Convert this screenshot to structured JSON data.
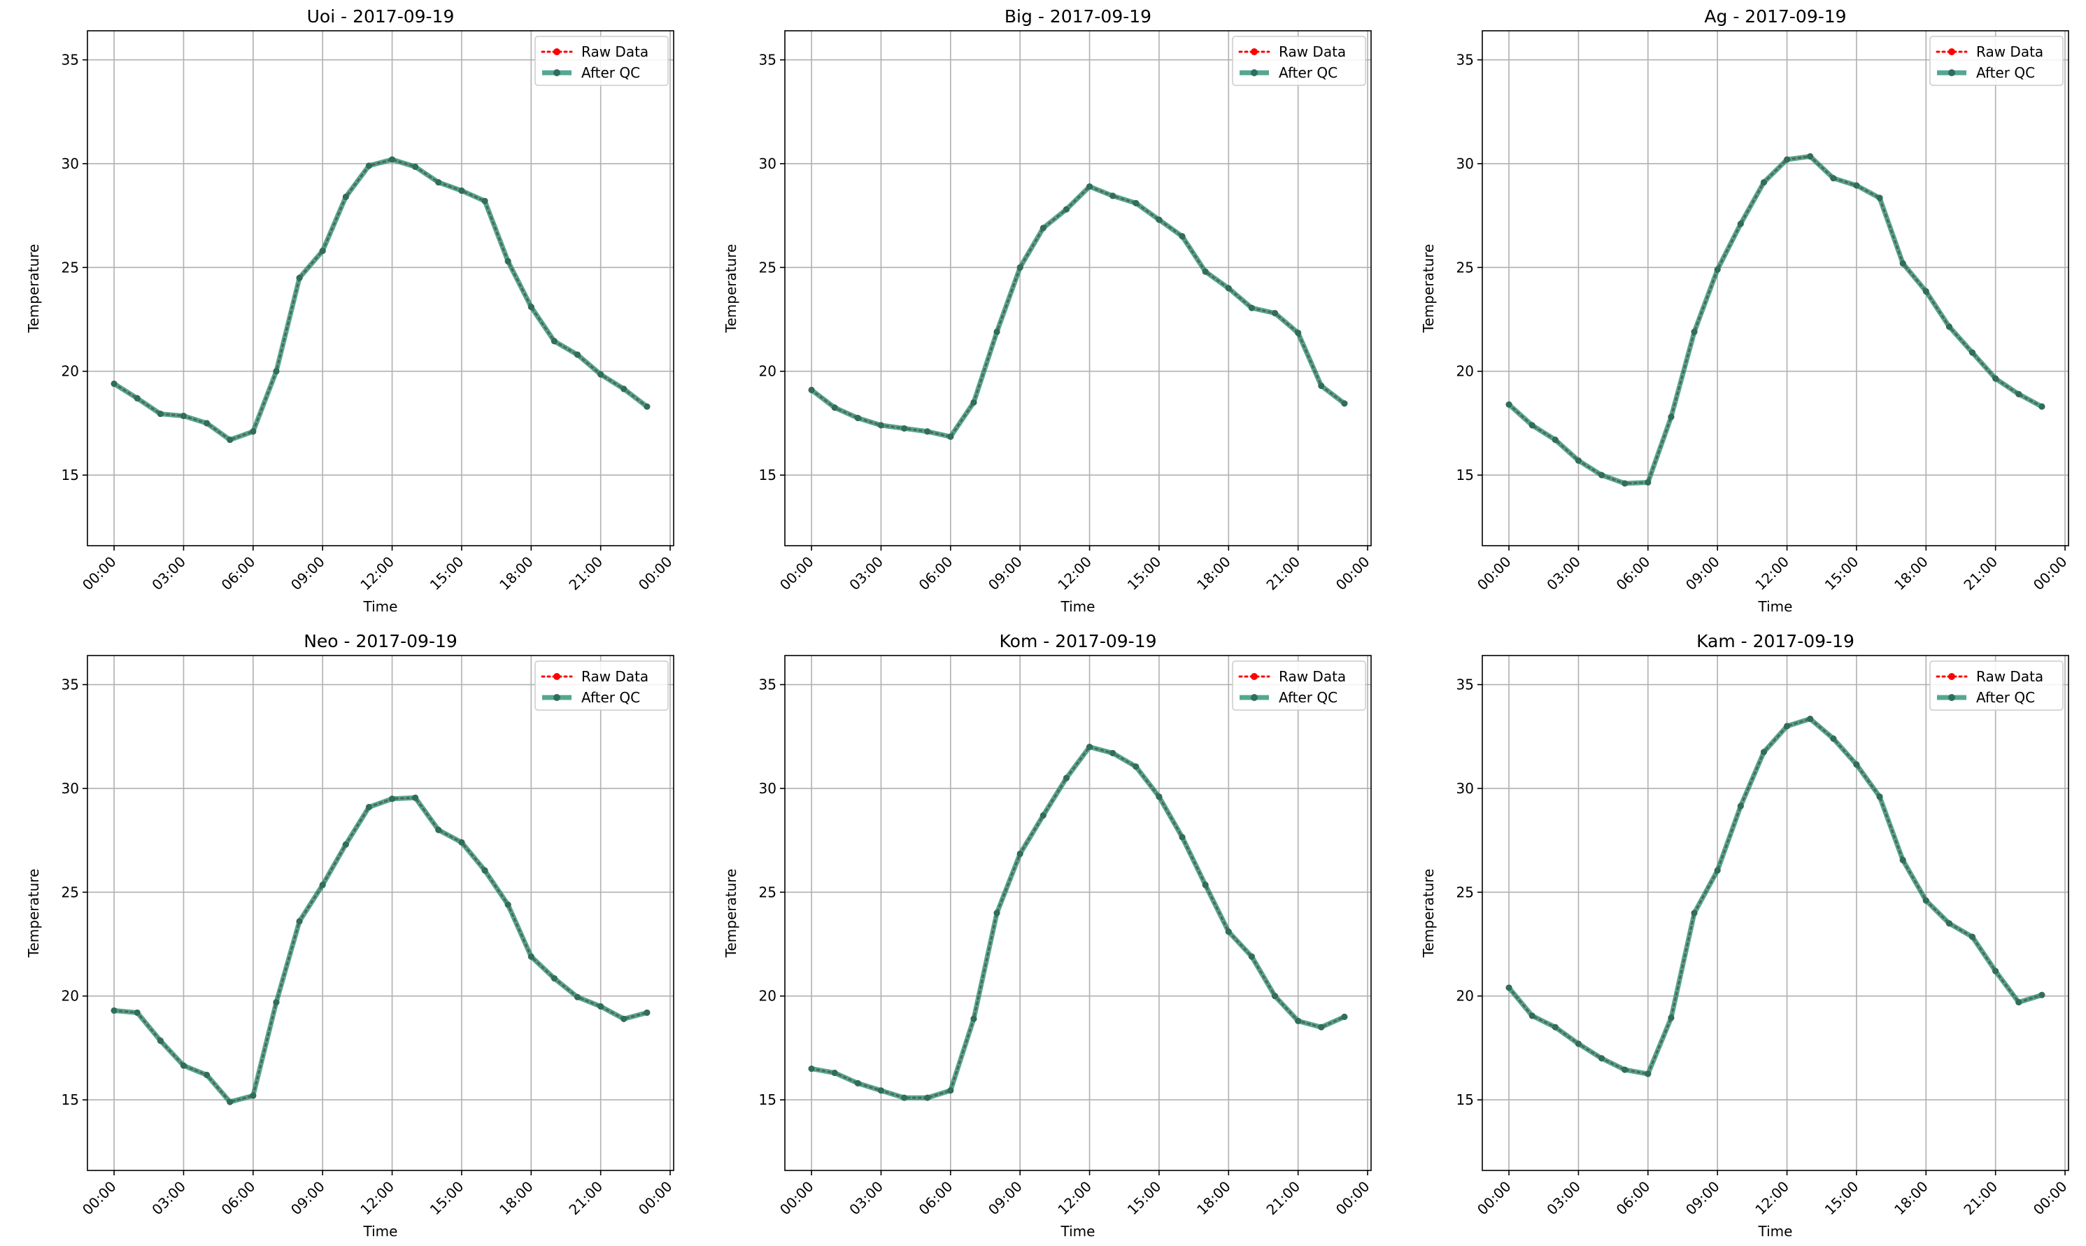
{
  "chart_data": [
    {
      "type": "line",
      "title": "Uoi - 2017-09-19",
      "xlabel": "Time",
      "ylabel": "Temperature",
      "xlim_hours": [
        -1.15,
        24.15
      ],
      "ylim": [
        11.6,
        36.4
      ],
      "xtick_labels": [
        "00:00",
        "03:00",
        "06:00",
        "09:00",
        "12:00",
        "15:00",
        "18:00",
        "21:00",
        "00:00"
      ],
      "ytick_labels": [
        "15",
        "20",
        "25",
        "30",
        "35"
      ],
      "grid": true,
      "legend_position": "top-right",
      "series": [
        {
          "name": "Raw Data",
          "color": "#ff0000",
          "style": "dotted",
          "values": [
            19.4,
            18.7,
            17.95,
            17.85,
            17.5,
            16.7,
            17.1,
            20.0,
            24.5,
            25.8,
            28.4,
            29.9,
            30.2,
            29.85,
            29.1,
            28.7,
            28.2,
            25.3,
            23.1,
            21.45,
            20.8,
            19.85,
            19.15,
            18.3
          ]
        },
        {
          "name": "After QC",
          "color": "#1b8a6b",
          "style": "solid",
          "values": [
            19.4,
            18.7,
            17.95,
            17.85,
            17.5,
            16.7,
            17.1,
            20.0,
            24.5,
            25.8,
            28.4,
            29.9,
            30.2,
            29.85,
            29.1,
            28.7,
            28.2,
            25.3,
            23.1,
            21.45,
            20.8,
            19.85,
            19.15,
            18.3
          ]
        }
      ]
    },
    {
      "type": "line",
      "title": "Big - 2017-09-19",
      "xlabel": "Time",
      "ylabel": "Temperature",
      "xlim_hours": [
        -1.15,
        24.15
      ],
      "ylim": [
        11.6,
        36.4
      ],
      "xtick_labels": [
        "00:00",
        "03:00",
        "06:00",
        "09:00",
        "12:00",
        "15:00",
        "18:00",
        "21:00",
        "00:00"
      ],
      "ytick_labels": [
        "15",
        "20",
        "25",
        "30",
        "35"
      ],
      "grid": true,
      "legend_position": "top-right",
      "series": [
        {
          "name": "Raw Data",
          "color": "#ff0000",
          "style": "dotted",
          "values": [
            19.1,
            18.25,
            17.75,
            17.4,
            17.25,
            17.1,
            16.85,
            18.5,
            21.9,
            25.0,
            26.9,
            27.8,
            28.9,
            28.45,
            28.1,
            27.3,
            26.5,
            24.8,
            24.0,
            23.05,
            22.8,
            21.85,
            19.3,
            18.45
          ]
        },
        {
          "name": "After QC",
          "color": "#1b8a6b",
          "style": "solid",
          "values": [
            19.1,
            18.25,
            17.75,
            17.4,
            17.25,
            17.1,
            16.85,
            18.5,
            21.9,
            25.0,
            26.9,
            27.8,
            28.9,
            28.45,
            28.1,
            27.3,
            26.5,
            24.8,
            24.0,
            23.05,
            22.8,
            21.85,
            19.3,
            18.45
          ]
        }
      ]
    },
    {
      "type": "line",
      "title": "Ag - 2017-09-19",
      "xlabel": "Time",
      "ylabel": "Temperature",
      "xlim_hours": [
        -1.15,
        24.15
      ],
      "ylim": [
        11.6,
        36.4
      ],
      "xtick_labels": [
        "00:00",
        "03:00",
        "06:00",
        "09:00",
        "12:00",
        "15:00",
        "18:00",
        "21:00",
        "00:00"
      ],
      "ytick_labels": [
        "15",
        "20",
        "25",
        "30",
        "35"
      ],
      "grid": true,
      "legend_position": "top-right",
      "series": [
        {
          "name": "Raw Data",
          "color": "#ff0000",
          "style": "dotted",
          "values": [
            18.4,
            17.4,
            16.7,
            15.7,
            15.0,
            14.6,
            14.65,
            17.8,
            21.9,
            24.9,
            27.1,
            29.1,
            30.2,
            30.35,
            29.3,
            28.95,
            28.35,
            25.2,
            23.85,
            22.15,
            20.9,
            19.65,
            18.9,
            18.3
          ]
        },
        {
          "name": "After QC",
          "color": "#1b8a6b",
          "style": "solid",
          "values": [
            18.4,
            17.4,
            16.7,
            15.7,
            15.0,
            14.6,
            14.65,
            17.8,
            21.9,
            24.9,
            27.1,
            29.1,
            30.2,
            30.35,
            29.3,
            28.95,
            28.35,
            25.2,
            23.85,
            22.15,
            20.9,
            19.65,
            18.9,
            18.3
          ]
        }
      ]
    },
    {
      "type": "line",
      "title": "Neo - 2017-09-19",
      "xlabel": "Time",
      "ylabel": "Temperature",
      "xlim_hours": [
        -1.15,
        24.15
      ],
      "ylim": [
        11.6,
        36.4
      ],
      "xtick_labels": [
        "00:00",
        "03:00",
        "06:00",
        "09:00",
        "12:00",
        "15:00",
        "18:00",
        "21:00",
        "00:00"
      ],
      "ytick_labels": [
        "15",
        "20",
        "25",
        "30",
        "35"
      ],
      "grid": true,
      "legend_position": "top-right",
      "series": [
        {
          "name": "Raw Data",
          "color": "#ff0000",
          "style": "dotted",
          "values": [
            19.3,
            19.2,
            17.85,
            16.65,
            16.2,
            14.9,
            15.2,
            19.7,
            23.6,
            25.35,
            27.3,
            29.1,
            29.5,
            29.55,
            28.0,
            27.4,
            26.05,
            24.4,
            21.9,
            20.85,
            19.95,
            19.5,
            18.9,
            19.2
          ]
        },
        {
          "name": "After QC",
          "color": "#1b8a6b",
          "style": "solid",
          "values": [
            19.3,
            19.2,
            17.85,
            16.65,
            16.2,
            14.9,
            15.2,
            19.7,
            23.6,
            25.35,
            27.3,
            29.1,
            29.5,
            29.55,
            28.0,
            27.4,
            26.05,
            24.4,
            21.9,
            20.85,
            19.95,
            19.5,
            18.9,
            19.2
          ]
        }
      ]
    },
    {
      "type": "line",
      "title": "Kom - 2017-09-19",
      "xlabel": "Time",
      "ylabel": "Temperature",
      "xlim_hours": [
        -1.15,
        24.15
      ],
      "ylim": [
        11.6,
        36.4
      ],
      "xtick_labels": [
        "00:00",
        "03:00",
        "06:00",
        "09:00",
        "12:00",
        "15:00",
        "18:00",
        "21:00",
        "00:00"
      ],
      "ytick_labels": [
        "15",
        "20",
        "25",
        "30",
        "35"
      ],
      "grid": true,
      "legend_position": "top-right",
      "series": [
        {
          "name": "Raw Data",
          "color": "#ff0000",
          "style": "dotted",
          "values": [
            16.5,
            16.3,
            15.8,
            15.45,
            15.1,
            15.1,
            15.45,
            18.9,
            24.0,
            26.85,
            28.7,
            30.5,
            32.0,
            31.7,
            31.05,
            29.6,
            27.65,
            25.35,
            23.1,
            21.9,
            20.0,
            18.8,
            18.5,
            19.0
          ]
        },
        {
          "name": "After QC",
          "color": "#1b8a6b",
          "style": "solid",
          "values": [
            16.5,
            16.3,
            15.8,
            15.45,
            15.1,
            15.1,
            15.45,
            18.9,
            24.0,
            26.85,
            28.7,
            30.5,
            32.0,
            31.7,
            31.05,
            29.6,
            27.65,
            25.35,
            23.1,
            21.9,
            20.0,
            18.8,
            18.5,
            19.0
          ]
        }
      ]
    },
    {
      "type": "line",
      "title": "Kam - 2017-09-19",
      "xlabel": "Time",
      "ylabel": "Temperature",
      "xlim_hours": [
        -1.15,
        24.15
      ],
      "ylim": [
        11.6,
        36.4
      ],
      "xtick_labels": [
        "00:00",
        "03:00",
        "06:00",
        "09:00",
        "12:00",
        "15:00",
        "18:00",
        "21:00",
        "00:00"
      ],
      "ytick_labels": [
        "15",
        "20",
        "25",
        "30",
        "35"
      ],
      "grid": true,
      "legend_position": "top-right",
      "series": [
        {
          "name": "Raw Data",
          "color": "#ff0000",
          "style": "dotted",
          "values": [
            20.4,
            19.05,
            18.5,
            17.7,
            17.0,
            16.45,
            16.25,
            18.95,
            24.0,
            26.05,
            29.15,
            31.75,
            33.0,
            33.35,
            32.4,
            31.15,
            29.6,
            26.55,
            24.6,
            23.5,
            22.85,
            21.2,
            19.7,
            20.05
          ]
        },
        {
          "name": "After QC",
          "color": "#1b8a6b",
          "style": "solid",
          "values": [
            20.4,
            19.05,
            18.5,
            17.7,
            17.0,
            16.45,
            16.25,
            18.95,
            24.0,
            26.05,
            29.15,
            31.75,
            33.0,
            33.35,
            32.4,
            31.15,
            29.6,
            26.55,
            24.6,
            23.5,
            22.85,
            21.2,
            19.7,
            20.05
          ]
        }
      ]
    }
  ]
}
